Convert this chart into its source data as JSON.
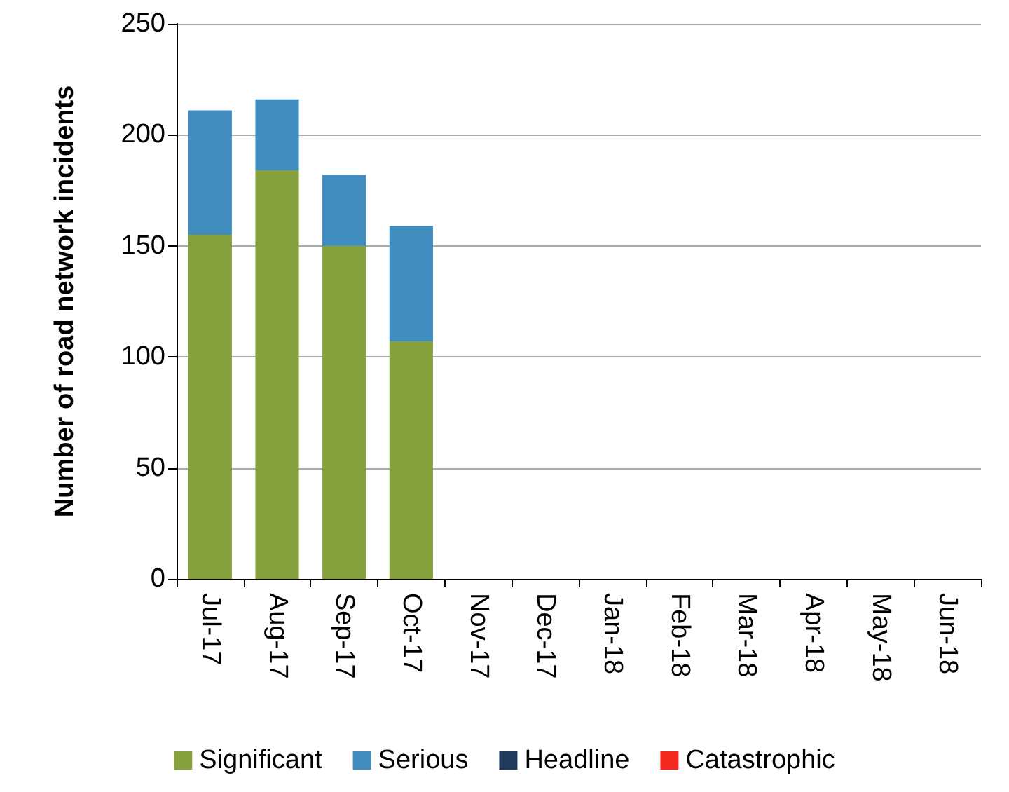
{
  "chart_data": {
    "type": "bar",
    "stacked": true,
    "ylabel": "Number of road network incidents",
    "categories": [
      "Jul-17",
      "Aug-17",
      "Sep-17",
      "Oct-17",
      "Nov-17",
      "Dec-17",
      "Jan-18",
      "Feb-18",
      "Mar-18",
      "Apr-18",
      "May-18",
      "Jun-18"
    ],
    "series": [
      {
        "name": "Significant",
        "color": "#86a03e",
        "values": [
          155,
          184,
          150,
          107,
          null,
          null,
          null,
          null,
          null,
          null,
          null,
          null
        ]
      },
      {
        "name": "Serious",
        "color": "#418dc0",
        "values": [
          56,
          32,
          32,
          52,
          null,
          null,
          null,
          null,
          null,
          null,
          null,
          null
        ]
      },
      {
        "name": "Headline",
        "color": "#1f3a5a",
        "values": [
          0,
          0,
          0,
          0,
          null,
          null,
          null,
          null,
          null,
          null,
          null,
          null
        ]
      },
      {
        "name": "Catastrophic",
        "color": "#f0281e",
        "values": [
          0,
          0,
          0,
          0,
          null,
          null,
          null,
          null,
          null,
          null,
          null,
          null
        ]
      }
    ],
    "ylim": [
      0,
      250
    ],
    "yticks": [
      0,
      50,
      100,
      150,
      200,
      250
    ],
    "grid": "y",
    "legend": "bottom"
  }
}
